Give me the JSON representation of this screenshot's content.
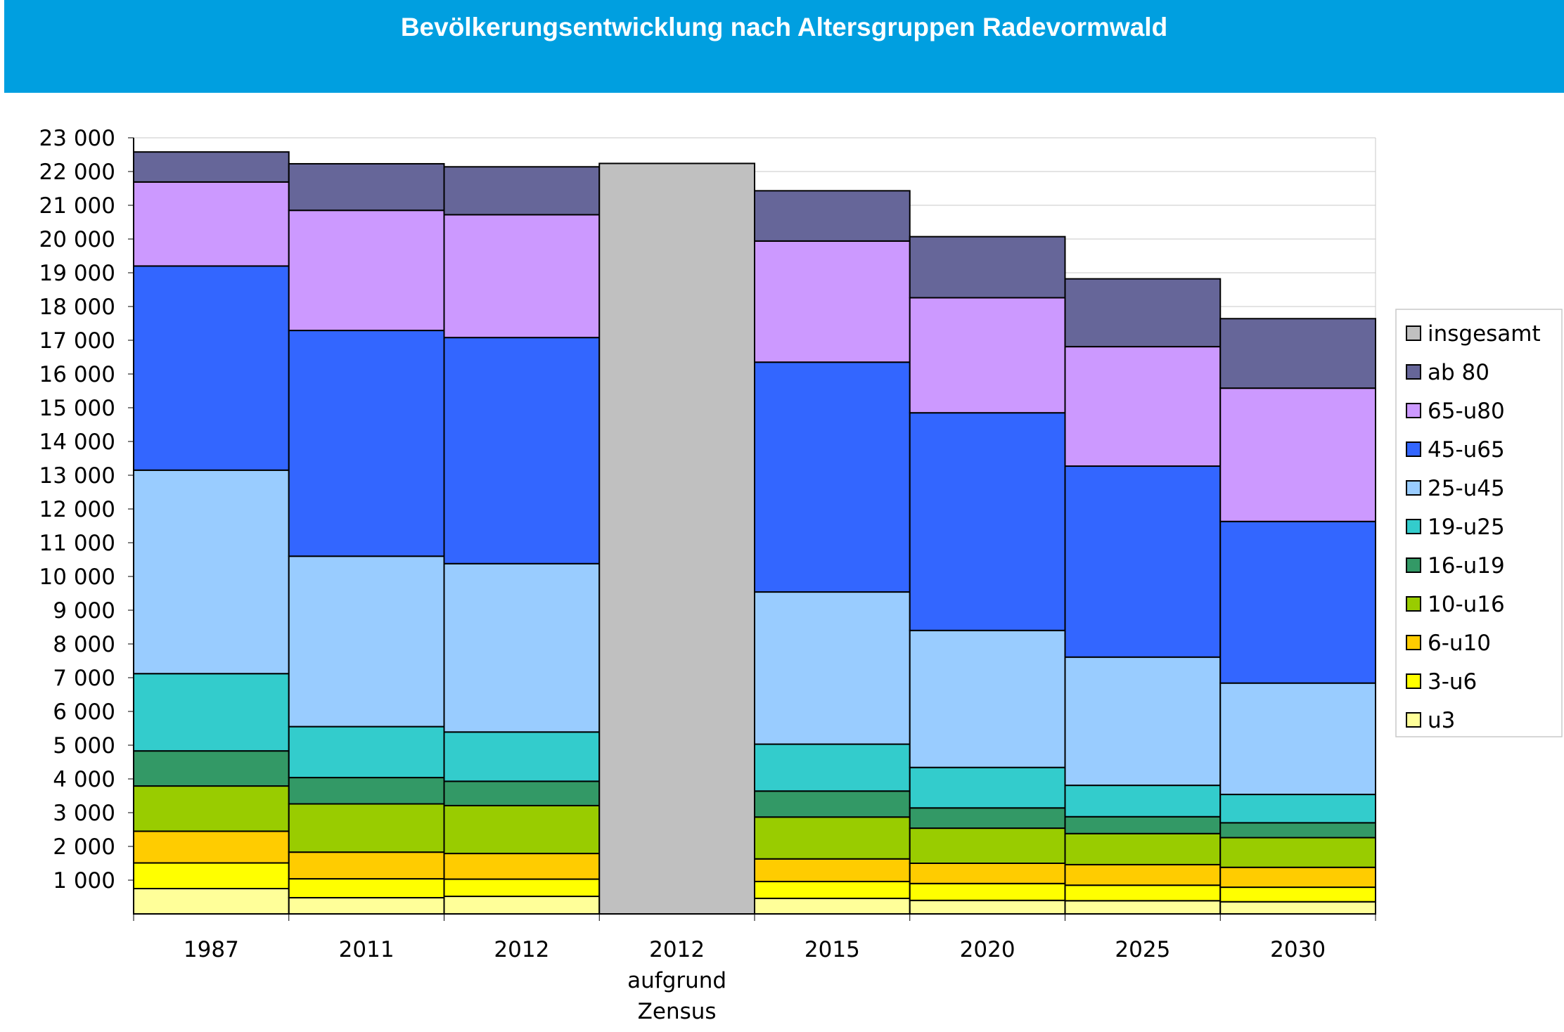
{
  "chart_data": {
    "type": "bar",
    "stacked": true,
    "title": "Bevölkerungsentwicklung nach Altersgruppen Radevormwald",
    "categories": [
      "1987",
      "2011",
      "2012",
      "2012 aufgrund Zensus",
      "2015",
      "2020",
      "2025",
      "2030"
    ],
    "category_lines": [
      [
        "1987"
      ],
      [
        "2011"
      ],
      [
        "2012"
      ],
      [
        "2012",
        "aufgrund",
        "Zensus"
      ],
      [
        "2015"
      ],
      [
        "2020"
      ],
      [
        "2025"
      ],
      [
        "2030"
      ]
    ],
    "ylim": [
      0,
      23000
    ],
    "ytick_values": [
      1000,
      2000,
      3000,
      4000,
      5000,
      6000,
      7000,
      8000,
      9000,
      10000,
      11000,
      12000,
      13000,
      14000,
      15000,
      16000,
      17000,
      18000,
      19000,
      20000,
      21000,
      22000,
      23000
    ],
    "ytick_labels": [
      "1 000",
      "2 000",
      "3 000",
      "4 000",
      "5 000",
      "6 000",
      "7 000",
      "8 000",
      "9 000",
      "10 000",
      "11 000",
      "12 000",
      "13 000",
      "14 000",
      "15 000",
      "16 000",
      "17 000",
      "18 000",
      "19 000",
      "20 000",
      "21 000",
      "22 000",
      "23 000"
    ],
    "grid": "horizontal",
    "legend_position": "right",
    "series": [
      {
        "name": "u3",
        "color": "#ffff99",
        "values": [
          750,
          480,
          520,
          0,
          460,
          400,
          390,
          360
        ]
      },
      {
        "name": "3-u6",
        "color": "#ffff00",
        "values": [
          760,
          560,
          510,
          0,
          500,
          500,
          460,
          430
        ]
      },
      {
        "name": "6-u10",
        "color": "#ffcc00",
        "values": [
          940,
          790,
          760,
          0,
          670,
          600,
          610,
          590
        ]
      },
      {
        "name": "10-u16",
        "color": "#99cc00",
        "values": [
          1340,
          1430,
          1420,
          0,
          1240,
          1040,
          920,
          880
        ]
      },
      {
        "name": "16-u19",
        "color": "#339966",
        "values": [
          1040,
          780,
          720,
          0,
          770,
          600,
          500,
          440
        ]
      },
      {
        "name": "19-u25",
        "color": "#33cccc",
        "values": [
          2290,
          1510,
          1460,
          0,
          1390,
          1200,
          930,
          840
        ]
      },
      {
        "name": "25-u45",
        "color": "#99ccff",
        "values": [
          6030,
          5050,
          4990,
          0,
          4510,
          4060,
          3800,
          3300
        ]
      },
      {
        "name": "45-u65",
        "color": "#3366ff",
        "values": [
          6050,
          6690,
          6700,
          0,
          6810,
          6450,
          5660,
          4790
        ]
      },
      {
        "name": "65-u80",
        "color": "#cc99ff",
        "values": [
          2490,
          3560,
          3640,
          0,
          3590,
          3410,
          3540,
          3950
        ]
      },
      {
        "name": "ab 80",
        "color": "#666699",
        "values": [
          890,
          1380,
          1420,
          0,
          1490,
          1810,
          2010,
          2060
        ]
      },
      {
        "name": "insgesamt",
        "color": "#c0c0c0",
        "values": [
          0,
          0,
          0,
          22240,
          0,
          0,
          0,
          0
        ]
      }
    ]
  }
}
